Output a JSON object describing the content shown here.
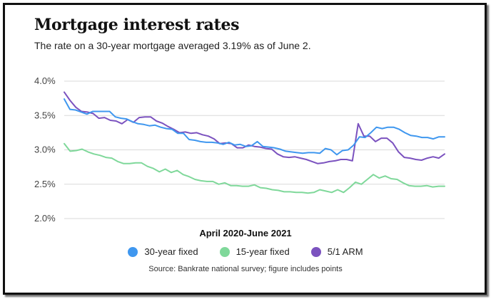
{
  "header": {
    "title": "Mortgage interest rates",
    "subtitle": "The rate on a 30-year mortgage averaged 3.19% as of June 2."
  },
  "footer": {
    "source": "Source: Bankrate national survey; figure includes points"
  },
  "chart_data": {
    "type": "line",
    "title": "Mortgage interest rates",
    "xlabel": "April 2020-June 2021",
    "ylabel": "",
    "ylim": [
      2.0,
      4.0
    ],
    "yticks": [
      2.0,
      2.5,
      3.0,
      3.5,
      4.0
    ],
    "ytick_labels": [
      "2.0%",
      "2.5%",
      "3.0%",
      "3.5%",
      "4.0%"
    ],
    "grid": "horizontal",
    "legend_position": "bottom",
    "series": [
      {
        "name": "30-year fixed",
        "color": "#3f97ef",
        "values": [
          3.74,
          3.59,
          3.58,
          3.55,
          3.52,
          3.56,
          3.56,
          3.56,
          3.56,
          3.48,
          3.46,
          3.45,
          3.41,
          3.38,
          3.37,
          3.35,
          3.36,
          3.33,
          3.31,
          3.3,
          3.24,
          3.24,
          3.15,
          3.14,
          3.12,
          3.11,
          3.11,
          3.1,
          3.08,
          3.11,
          3.07,
          3.08,
          3.05,
          3.06,
          3.12,
          3.05,
          3.04,
          3.03,
          3.01,
          2.98,
          2.97,
          2.96,
          2.95,
          2.96,
          2.96,
          2.95,
          3.02,
          3.0,
          2.93,
          2.99,
          3.0,
          3.07,
          3.19,
          3.18,
          3.25,
          3.33,
          3.31,
          3.33,
          3.33,
          3.3,
          3.25,
          3.21,
          3.2,
          3.18,
          3.18,
          3.16,
          3.19,
          3.19
        ]
      },
      {
        "name": "15-year fixed",
        "color": "#7fd89a",
        "values": [
          3.09,
          2.98,
          2.99,
          3.01,
          2.97,
          2.94,
          2.92,
          2.89,
          2.88,
          2.83,
          2.8,
          2.8,
          2.81,
          2.81,
          2.76,
          2.73,
          2.68,
          2.72,
          2.67,
          2.7,
          2.64,
          2.61,
          2.57,
          2.55,
          2.54,
          2.54,
          2.5,
          2.52,
          2.48,
          2.48,
          2.47,
          2.47,
          2.49,
          2.45,
          2.44,
          2.42,
          2.41,
          2.39,
          2.39,
          2.38,
          2.38,
          2.37,
          2.38,
          2.42,
          2.4,
          2.38,
          2.42,
          2.38,
          2.45,
          2.53,
          2.5,
          2.57,
          2.64,
          2.59,
          2.62,
          2.58,
          2.57,
          2.52,
          2.48,
          2.47,
          2.47,
          2.48,
          2.46,
          2.47,
          2.47
        ]
      },
      {
        "name": "5/1 ARM",
        "color": "#7b52bf",
        "values": [
          3.84,
          3.72,
          3.62,
          3.56,
          3.55,
          3.53,
          3.46,
          3.47,
          3.43,
          3.42,
          3.38,
          3.44,
          3.4,
          3.47,
          3.48,
          3.48,
          3.42,
          3.39,
          3.34,
          3.3,
          3.25,
          3.26,
          3.24,
          3.25,
          3.22,
          3.2,
          3.16,
          3.09,
          3.1,
          3.09,
          3.03,
          3.03,
          3.07,
          3.05,
          3.04,
          3.02,
          3.01,
          2.94,
          2.9,
          2.89,
          2.9,
          2.88,
          2.86,
          2.83,
          2.8,
          2.81,
          2.83,
          2.84,
          2.86,
          2.86,
          2.84,
          3.38,
          3.2,
          3.2,
          3.12,
          3.17,
          3.17,
          3.1,
          2.97,
          2.89,
          2.88,
          2.86,
          2.85,
          2.88,
          2.9,
          2.88,
          2.94
        ]
      }
    ]
  },
  "icons": {
    "legend_marker": "circle-icon"
  }
}
